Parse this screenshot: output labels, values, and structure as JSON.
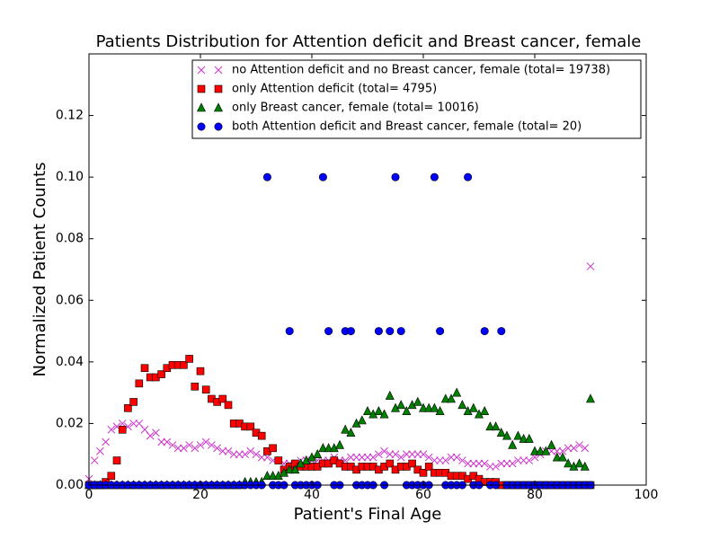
{
  "chart_data": {
    "type": "scatter",
    "title": "Patients Distribution for Attention deficit and Breast cancer, female",
    "x_label": "Patient's Final Age",
    "y_label": "Normalized Patient Counts",
    "xlim": [
      0,
      100
    ],
    "ylim": [
      0,
      0.14
    ],
    "xticks": [
      0,
      20,
      40,
      60,
      80,
      100
    ],
    "yticks": [
      {
        "value": 0,
        "label": "0.00"
      },
      {
        "value": 0.02,
        "label": "0.02"
      },
      {
        "value": 0.04,
        "label": "0.04"
      },
      {
        "value": 0.06,
        "label": "0.06"
      },
      {
        "value": 0.08,
        "label": "0.08"
      },
      {
        "value": 0.1,
        "label": "0.10"
      },
      {
        "value": 0.12,
        "label": "0.12"
      }
    ],
    "legend": "upper right",
    "x": [
      0,
      1,
      2,
      3,
      4,
      5,
      6,
      7,
      8,
      9,
      10,
      11,
      12,
      13,
      14,
      15,
      16,
      17,
      18,
      19,
      20,
      21,
      22,
      23,
      24,
      25,
      26,
      27,
      28,
      29,
      30,
      31,
      32,
      33,
      34,
      35,
      36,
      37,
      38,
      39,
      40,
      41,
      42,
      43,
      44,
      45,
      46,
      47,
      48,
      49,
      50,
      51,
      52,
      53,
      54,
      55,
      56,
      57,
      58,
      59,
      60,
      61,
      62,
      63,
      64,
      65,
      66,
      67,
      68,
      69,
      70,
      71,
      72,
      73,
      74,
      75,
      76,
      77,
      78,
      79,
      80,
      81,
      82,
      83,
      84,
      85,
      86,
      87,
      88,
      89,
      90
    ],
    "series": [
      {
        "name": "no Attention deficit and no Breast cancer, female (total= 19738)",
        "color": "#cc33cc",
        "marker": "x",
        "values": [
          0.002,
          0.008,
          0.011,
          0.014,
          0.018,
          0.019,
          0.02,
          0.019,
          0.02,
          0.02,
          0.018,
          0.016,
          0.017,
          0.014,
          0.014,
          0.013,
          0.012,
          0.012,
          0.013,
          0.012,
          0.013,
          0.014,
          0.013,
          0.012,
          0.011,
          0.011,
          0.01,
          0.01,
          0.01,
          0.011,
          0.01,
          0.009,
          0.009,
          0.008,
          0.008,
          0.007,
          0.007,
          0.007,
          0.008,
          0.008,
          0.008,
          0.008,
          0.008,
          0.008,
          0.009,
          0.008,
          0.008,
          0.009,
          0.009,
          0.009,
          0.009,
          0.009,
          0.01,
          0.011,
          0.01,
          0.01,
          0.009,
          0.01,
          0.01,
          0.01,
          0.01,
          0.009,
          0.008,
          0.008,
          0.008,
          0.009,
          0.009,
          0.008,
          0.007,
          0.007,
          0.007,
          0.007,
          0.006,
          0.006,
          0.007,
          0.007,
          0.007,
          0.008,
          0.008,
          0.008,
          0.009,
          0.01,
          0.011,
          0.011,
          0.011,
          0.011,
          0.012,
          0.012,
          0.013,
          0.012,
          0.071
        ]
      },
      {
        "name": "only Attention deficit (total= 4795)",
        "color": "#ff0000",
        "marker": "s",
        "values": [
          0,
          0,
          0,
          0.001,
          0.003,
          0.008,
          0.018,
          0.025,
          0.027,
          0.033,
          0.038,
          0.035,
          0.035,
          0.036,
          0.038,
          0.039,
          0.039,
          0.039,
          0.041,
          0.032,
          0.037,
          0.031,
          0.028,
          0.027,
          0.028,
          0.026,
          0.02,
          0.02,
          0.019,
          0.019,
          0.017,
          0.016,
          0.011,
          0.012,
          0.008,
          0.005,
          0.006,
          0.007,
          0.006,
          0.006,
          0.006,
          0.006,
          0.007,
          0.007,
          0.008,
          0.007,
          0.006,
          0.006,
          0.005,
          0.006,
          0.006,
          0.006,
          0.005,
          0.006,
          0.007,
          0.005,
          0.006,
          0.006,
          0.007,
          0.005,
          0.004,
          0.006,
          0.004,
          0.004,
          0.004,
          0.003,
          0.003,
          0.003,
          0.002,
          0.003,
          0.002,
          0.001,
          0.001,
          0.001,
          0,
          0,
          0,
          0,
          0,
          0,
          0,
          0,
          0,
          0,
          0,
          0,
          0,
          0,
          0,
          0,
          0
        ]
      },
      {
        "name": "only Breast cancer, female (total= 10016)",
        "color": "#008000",
        "marker": "^",
        "values": [
          0,
          0,
          0,
          0,
          0,
          0,
          0,
          0,
          0,
          0,
          0,
          0,
          0,
          0,
          0,
          0,
          0,
          0,
          0,
          0,
          0,
          0,
          0,
          0,
          0,
          0,
          0,
          0,
          0.001,
          0.001,
          0.001,
          0.001,
          0.003,
          0.003,
          0.003,
          0.004,
          0.005,
          0.005,
          0.007,
          0.008,
          0.009,
          0.01,
          0.012,
          0.012,
          0.012,
          0.013,
          0.018,
          0.017,
          0.02,
          0.021,
          0.024,
          0.023,
          0.024,
          0.023,
          0.029,
          0.025,
          0.026,
          0.024,
          0.026,
          0.027,
          0.025,
          0.025,
          0.025,
          0.024,
          0.028,
          0.028,
          0.03,
          0.026,
          0.024,
          0.025,
          0.023,
          0.024,
          0.019,
          0.019,
          0.017,
          0.016,
          0.013,
          0.016,
          0.015,
          0.015,
          0.011,
          0.011,
          0.011,
          0.013,
          0.009,
          0.009,
          0.007,
          0.006,
          0.007,
          0.006,
          0.028
        ]
      },
      {
        "name": "both Attention deficit and Breast cancer, female (total= 20)",
        "color": "#0000ff",
        "marker": "o",
        "values": [
          0,
          0,
          0,
          0,
          0,
          0,
          0,
          0,
          0,
          0,
          0,
          0,
          0,
          0,
          0,
          0,
          0,
          0,
          0,
          0,
          0,
          0,
          0,
          0,
          0,
          0,
          0,
          0,
          0,
          0,
          0,
          0,
          0.1,
          0,
          0,
          0,
          0.05,
          0,
          0,
          0,
          0,
          0,
          0.1,
          0.05,
          0,
          0,
          0.05,
          0.05,
          0,
          0,
          0,
          0,
          0.05,
          0,
          0.05,
          0.1,
          0.05,
          0,
          0,
          0,
          0,
          0,
          0.1,
          0.05,
          0,
          0,
          0,
          0,
          0.1,
          0,
          0,
          0.05,
          0,
          0,
          0.05,
          0,
          0,
          0,
          0,
          0,
          0,
          0,
          0,
          0,
          0,
          0,
          0,
          0,
          0,
          0,
          0
        ]
      }
    ]
  }
}
